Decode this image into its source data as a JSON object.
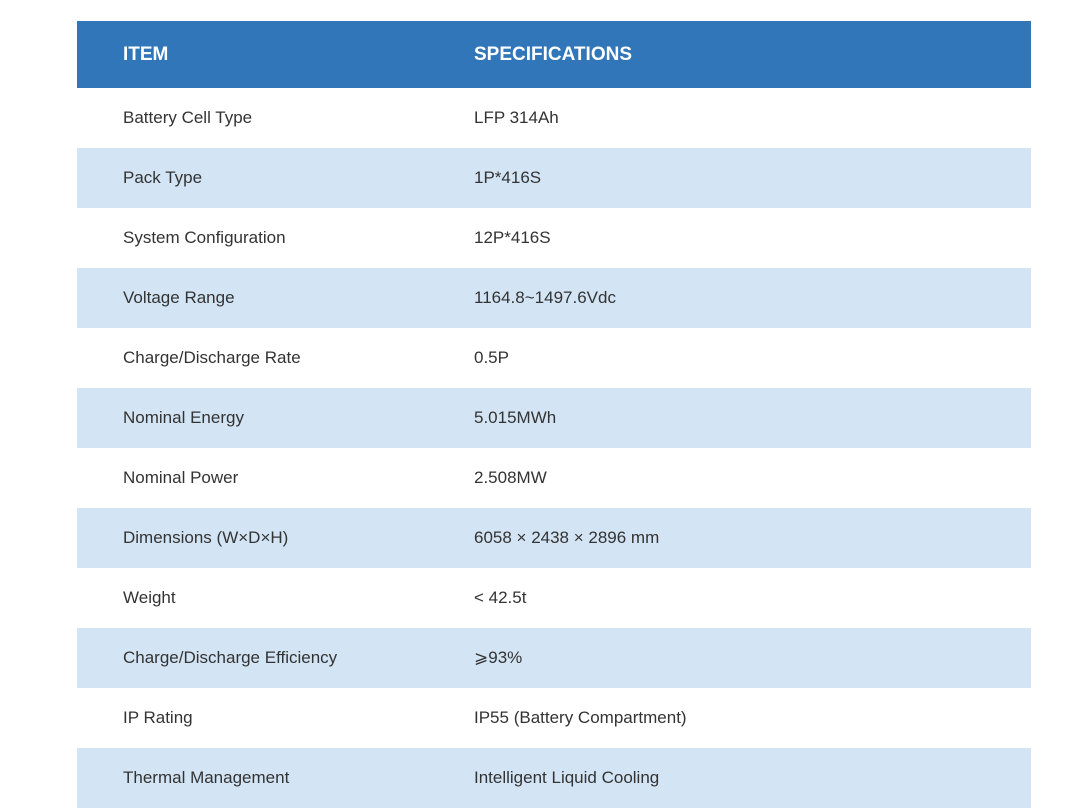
{
  "table": {
    "header": {
      "item": "ITEM",
      "specifications": "SPECIFICATIONS"
    },
    "colors": {
      "header_bg": "#3176b8",
      "shaded_row_bg": "#d3e4f4",
      "text": "#333333"
    },
    "rows": [
      {
        "item": "Battery Cell Type",
        "spec": "LFP 314Ah"
      },
      {
        "item": "Pack Type",
        "spec": "1P*416S"
      },
      {
        "item": "System Configuration",
        "spec": "12P*416S"
      },
      {
        "item": "Voltage Range",
        "spec": "1164.8~1497.6Vdc"
      },
      {
        "item": "Charge/Discharge Rate",
        "spec": "0.5P"
      },
      {
        "item": "Nominal Energy",
        "spec": "5.015MWh"
      },
      {
        "item": "Nominal Power",
        "spec": "2.508MW"
      },
      {
        "item": "Dimensions (W×D×H)",
        "spec": "6058 × 2438 × 2896 mm"
      },
      {
        "item": "Weight",
        "spec": "< 42.5t"
      },
      {
        "item": "Charge/Discharge Efficiency",
        "spec": "⩾93%"
      },
      {
        "item": "IP Rating",
        "spec": "IP55 (Battery Compartment)"
      },
      {
        "item": "Thermal Management",
        "spec": "Intelligent Liquid Cooling"
      }
    ]
  }
}
